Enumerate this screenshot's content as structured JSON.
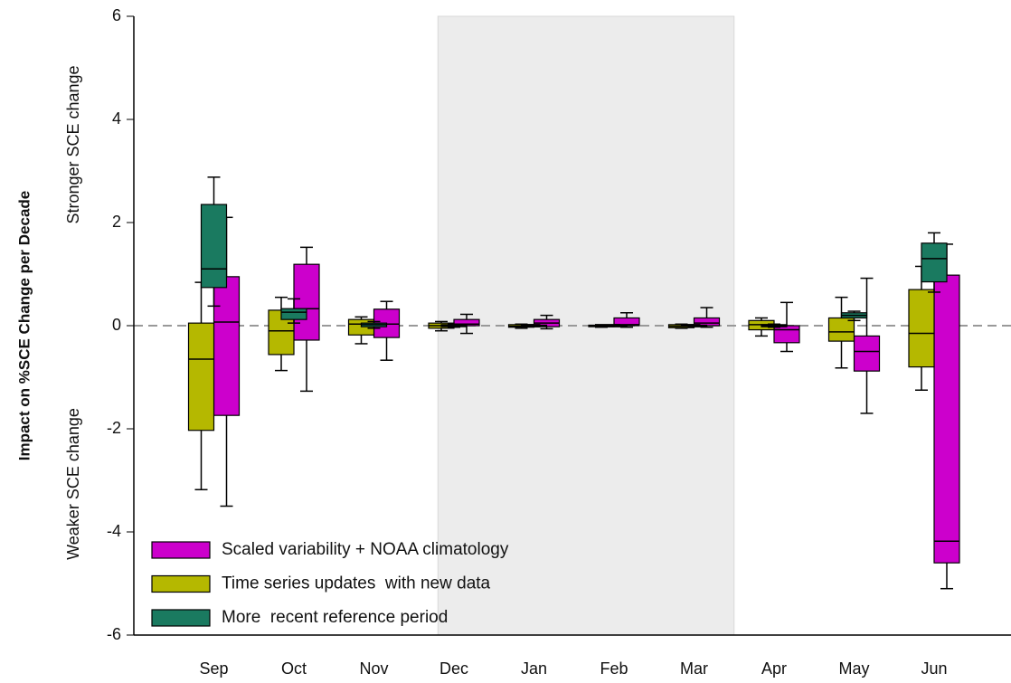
{
  "chart_data": {
    "type": "box",
    "y_label": "Impact on %SCE Change per Decade",
    "annotations": [
      "Stronger SCE change",
      "Weaker SCE change"
    ],
    "categories": [
      "Sep",
      "Oct",
      "Nov",
      "Dec",
      "Jan",
      "Feb",
      "Mar",
      "Apr",
      "May",
      "Jun"
    ],
    "ylim": [
      -6,
      6
    ],
    "yticks": [
      -6,
      -4,
      -2,
      0,
      2,
      4,
      6
    ],
    "reference_line": 0,
    "shaded_range": {
      "from": "Dec",
      "to": "Mar"
    },
    "legend": "lower left",
    "series": [
      {
        "name": "Scaled variability + NOAA climatology",
        "color": "#cc00cc",
        "values": [
          {
            "whislo": -3.5,
            "q1": -1.74,
            "median": 0.07,
            "q3": 0.95,
            "whishi": 2.1
          },
          {
            "whislo": -1.27,
            "q1": -0.28,
            "median": 0.33,
            "q3": 1.19,
            "whishi": 1.52
          },
          {
            "whislo": -0.67,
            "q1": -0.23,
            "median": 0.03,
            "q3": 0.32,
            "whishi": 0.47
          },
          {
            "whislo": -0.15,
            "q1": 0.0,
            "median": 0.03,
            "q3": 0.12,
            "whishi": 0.22
          },
          {
            "whislo": -0.06,
            "q1": -0.02,
            "median": 0.05,
            "q3": 0.12,
            "whishi": 0.2
          },
          {
            "whislo": -0.03,
            "q1": 0.0,
            "median": 0.02,
            "q3": 0.15,
            "whishi": 0.25
          },
          {
            "whislo": -0.03,
            "q1": 0.0,
            "median": 0.05,
            "q3": 0.15,
            "whishi": 0.35
          },
          {
            "whislo": -0.5,
            "q1": -0.33,
            "median": -0.08,
            "q3": 0.0,
            "whishi": 0.45
          },
          {
            "whislo": -1.7,
            "q1": -0.88,
            "median": -0.5,
            "q3": -0.2,
            "whishi": 0.92
          },
          {
            "whislo": -5.1,
            "q1": -4.6,
            "median": -4.18,
            "q3": 0.98,
            "whishi": 1.58
          }
        ]
      },
      {
        "name": "Time series updates  with new data",
        "color": "#b5b800",
        "values": [
          {
            "whislo": -3.18,
            "q1": -2.03,
            "median": -0.65,
            "q3": 0.05,
            "whishi": 0.84
          },
          {
            "whislo": -0.87,
            "q1": -0.56,
            "median": -0.1,
            "q3": 0.3,
            "whishi": 0.55
          },
          {
            "whislo": -0.35,
            "q1": -0.18,
            "median": 0.03,
            "q3": 0.12,
            "whishi": 0.17
          },
          {
            "whislo": -0.1,
            "q1": -0.05,
            "median": 0.0,
            "q3": 0.05,
            "whishi": 0.08
          },
          {
            "whislo": -0.05,
            "q1": -0.03,
            "median": -0.01,
            "q3": 0.02,
            "whishi": 0.03
          },
          {
            "whislo": -0.03,
            "q1": -0.02,
            "median": 0.0,
            "q3": 0.01,
            "whishi": 0.02
          },
          {
            "whislo": -0.05,
            "q1": -0.04,
            "median": -0.01,
            "q3": 0.02,
            "whishi": 0.03
          },
          {
            "whislo": -0.2,
            "q1": -0.08,
            "median": 0.02,
            "q3": 0.1,
            "whishi": 0.15
          },
          {
            "whislo": -0.82,
            "q1": -0.3,
            "median": -0.12,
            "q3": 0.15,
            "whishi": 0.55
          },
          {
            "whislo": -1.25,
            "q1": -0.8,
            "median": -0.15,
            "q3": 0.7,
            "whishi": 1.15
          }
        ]
      },
      {
        "name": "More  recent reference period",
        "color": "#1a7a60",
        "values": [
          {
            "whislo": 0.38,
            "q1": 0.74,
            "median": 1.1,
            "q3": 2.35,
            "whishi": 2.88
          },
          {
            "whislo": 0.05,
            "q1": 0.12,
            "median": 0.26,
            "q3": 0.33,
            "whishi": 0.52
          },
          {
            "whislo": -0.05,
            "q1": -0.02,
            "median": 0.02,
            "q3": 0.05,
            "whishi": 0.08
          },
          {
            "whislo": -0.03,
            "q1": -0.02,
            "median": 0.0,
            "q3": 0.02,
            "whishi": 0.03
          },
          {
            "whislo": -0.02,
            "q1": -0.01,
            "median": 0.0,
            "q3": 0.01,
            "whishi": 0.02
          },
          {
            "whislo": -0.02,
            "q1": -0.01,
            "median": 0.0,
            "q3": 0.01,
            "whishi": 0.02
          },
          {
            "whislo": -0.02,
            "q1": -0.01,
            "median": 0.0,
            "q3": 0.01,
            "whishi": 0.02
          },
          {
            "whislo": -0.03,
            "q1": -0.02,
            "median": 0.0,
            "q3": 0.02,
            "whishi": 0.03
          },
          {
            "whislo": 0.1,
            "q1": 0.15,
            "median": 0.2,
            "q3": 0.25,
            "whishi": 0.28
          },
          {
            "whislo": 0.65,
            "q1": 0.85,
            "median": 1.3,
            "q3": 1.6,
            "whishi": 1.8
          }
        ]
      }
    ]
  }
}
